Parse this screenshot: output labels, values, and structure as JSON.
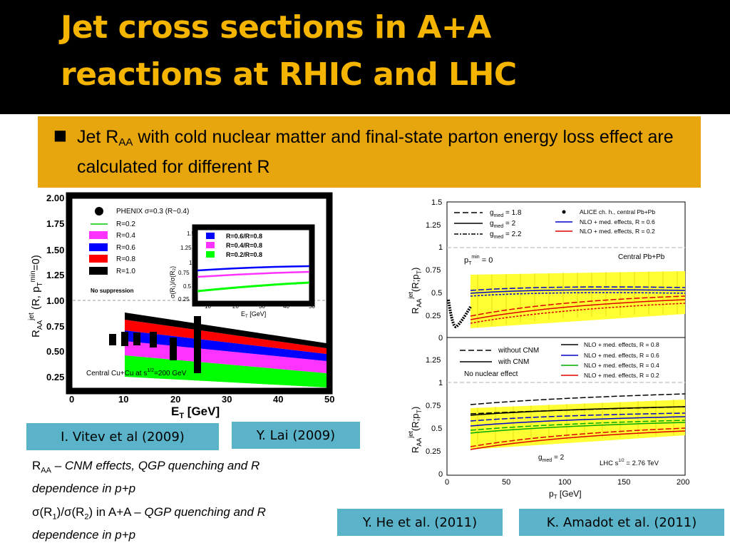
{
  "slide": {
    "title_line1": "Jet cross sections in A+A",
    "title_line2": "reactions at RHIC and LHC",
    "bullet": {
      "pre": "Jet R",
      "sub": "AA",
      "post": " with cold nuclear matter and final-state parton energy loss effect are calculated for different R"
    },
    "citations": {
      "vitev": "I. Vitev et al (2009)",
      "lai": "Y. Lai (2009)",
      "he": "Y. He et al. (2011)",
      "amadot": "K. Amadot et al. (2011)"
    },
    "note1": {
      "pre": "R",
      "sub": "AA",
      "dash": " – ",
      "italic": "CNM effects, QGP quenching and R dependence in p+p"
    },
    "note2": {
      "pre": "σ(R",
      "sub1": "1",
      "mid": ")/σ(R",
      "sub2": "2",
      "post": ") in A+A – ",
      "italic": "QGP quenching and R dependence in p+p"
    }
  },
  "left_figure": {
    "y_ticks": [
      "2.00",
      "1.75",
      "1.50",
      "1.25",
      "1.00",
      "0.75",
      "0.50",
      "0.25"
    ],
    "x_ticks": [
      "0",
      "10",
      "20",
      "30",
      "40",
      "50"
    ],
    "x_label": "E",
    "x_label_sub": "T",
    "x_label_unit": " [GeV]",
    "y_label": "R",
    "y_label_sub": "AA",
    "y_label_sup": "jet",
    "y_label_tail": " (R, p",
    "y_label_tail_sub": "T",
    "y_label_tail_sup": "min",
    "y_label_end": "=0)",
    "legend": {
      "phenix": "PHENIX σ=0.3 (R~0.4)",
      "r02": "R=0.2",
      "r04": "R=0.4",
      "r06": "R=0.6",
      "r08": "R=0.8",
      "r10": "R=1.0",
      "nosupp": "No suppression"
    },
    "system": "Central Cu+Cu at s",
    "system_sup": "1/2",
    "system_end": "=200 GeV",
    "inset": {
      "y_ticks": [
        "1.5",
        "1.25",
        "1",
        "0.75",
        "0.5",
        "0.25"
      ],
      "x_ticks": [
        "10",
        "20",
        "30",
        "40",
        "50"
      ],
      "x_label": "E",
      "x_label_sub": "T",
      "x_label_unit": " [GeV]",
      "y_label": "σ(R₁)/σ(R₂)",
      "legend": [
        "R=0.6/R=0.8",
        "R=0.4/R=0.8",
        "R=0.2/R=0.8"
      ]
    },
    "colors": {
      "r02": "#00ff00",
      "r04": "#ff33ff",
      "r06": "#0000ff",
      "r08": "#ff0000",
      "r10": "#000000"
    }
  },
  "right_figure": {
    "y_ticks_top": [
      "1.5",
      "1.25",
      "1",
      "0.75",
      "0.5",
      "0.25",
      "0"
    ],
    "y_ticks_bottom": [
      "1.25",
      "1",
      "0.75",
      "0.5",
      "0.25",
      "0"
    ],
    "x_ticks": [
      "0",
      "50",
      "100",
      "150",
      "200"
    ],
    "x_label": "p",
    "x_label_sub": "T",
    "x_label_unit": " [GeV]",
    "y_label": "R",
    "y_label_sub": "AA",
    "y_label_sup": "jet",
    "y_label_tail": "(R;p",
    "y_label_tail_sub": "T",
    "y_label_end": ")",
    "top_legend_left": [
      {
        "text": "g",
        "sub": "med",
        "tail": " = 1.8"
      },
      {
        "text": "g",
        "sub": "med",
        "tail": " = 2"
      },
      {
        "text": "g",
        "sub": "med",
        "tail": " = 2.2"
      }
    ],
    "top_legend_right": [
      "ALICE ch. h., central Pb+Pb",
      "NLO + med. effects, R = 0.6",
      "NLO + med. effects, R = 0.2"
    ],
    "top_ptmin": {
      "pre": "p",
      "sub": "T",
      "sup": "min",
      "post": " = 0"
    },
    "top_system": "Central Pb+Pb",
    "bottom_legend_left": [
      "without CNM",
      "with CNM",
      "No nuclear effect"
    ],
    "bottom_legend_right": [
      "NLO + med. effects, R = 0.8",
      "NLO + med. effects, R = 0.6",
      "NLO + med. effects, R = 0.4",
      "NLO + med. effects, R = 0.2"
    ],
    "bottom_gmed": {
      "text": "g",
      "sub": "med",
      "tail": " = 2"
    },
    "bottom_energy": {
      "pre": "LHC s",
      "sup": "1/2",
      "post": " = 2.76 TeV"
    }
  }
}
